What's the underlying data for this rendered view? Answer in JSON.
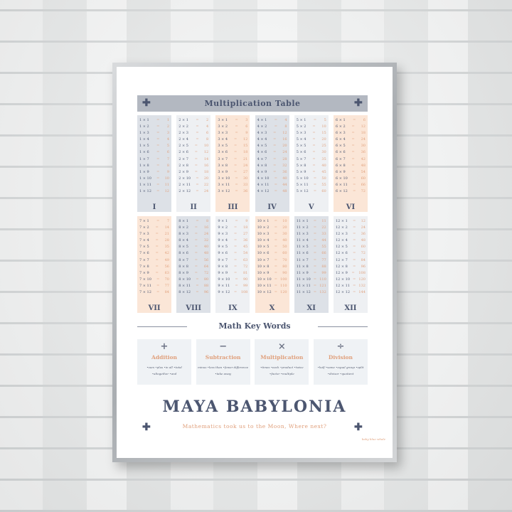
{
  "poster": {
    "header": "Multiplication Table",
    "tables": [
      {
        "n": 1,
        "numeral": "I",
        "bg": "g"
      },
      {
        "n": 2,
        "numeral": "II",
        "bg": "l"
      },
      {
        "n": 3,
        "numeral": "III",
        "bg": "p"
      },
      {
        "n": 4,
        "numeral": "IV",
        "bg": "g"
      },
      {
        "n": 5,
        "numeral": "V",
        "bg": "l"
      },
      {
        "n": 6,
        "numeral": "VI",
        "bg": "p"
      },
      {
        "n": 7,
        "numeral": "VII",
        "bg": "p"
      },
      {
        "n": 8,
        "numeral": "VIII",
        "bg": "g"
      },
      {
        "n": 9,
        "numeral": "IX",
        "bg": "l"
      },
      {
        "n": 10,
        "numeral": "X",
        "bg": "p"
      },
      {
        "n": 11,
        "numeral": "XI",
        "bg": "g"
      },
      {
        "n": 12,
        "numeral": "XII",
        "bg": "l"
      }
    ],
    "key_words_title": "Math Key Words",
    "key_words": [
      {
        "symbol": "+",
        "name": "Addition",
        "words": [
          "•sum",
          "•plus",
          "•in all",
          "•total",
          "•altogether",
          "•and"
        ]
      },
      {
        "symbol": "−",
        "name": "Subtraction",
        "words": [
          "minus",
          "•less than",
          "•fewer",
          "difference",
          "•take away"
        ]
      },
      {
        "symbol": "×",
        "name": "Multiplication",
        "words": [
          "•times",
          "•each",
          "•product",
          "•twice",
          "•factor",
          "•multiple"
        ]
      },
      {
        "symbol": "÷",
        "name": "Division",
        "words": [
          "•half",
          "•same",
          "•equal group",
          "•split",
          "•divisor",
          "•quotient"
        ]
      }
    ],
    "brand": "MAYA BABYLONIA",
    "tagline": "Mathematics took us to the Moon, Where next?",
    "signature": "baby blue whale",
    "colors": {
      "navy": "#4c5670",
      "peach": "#e0a07c",
      "grey_bar": "#b3b8c1"
    }
  }
}
